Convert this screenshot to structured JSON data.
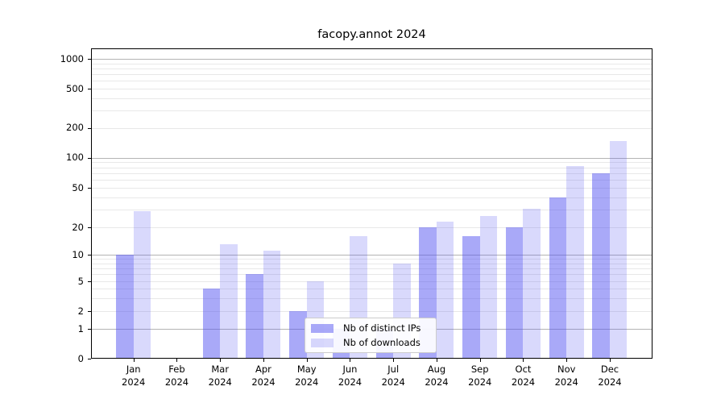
{
  "title": "facopy.annot 2024",
  "colors": {
    "ips": "rgba(80,80,240,0.49)",
    "downloads": "rgba(80,80,240,0.22)",
    "major_grid": "#b4b4b4",
    "minor_grid": "#e8e8e8",
    "axis": "#000000",
    "legend_border": "#cccccc"
  },
  "y_axis": {
    "tick_labels": [
      "0",
      "1",
      "2",
      "5",
      "10",
      "20",
      "50",
      "100",
      "200",
      "500",
      "1000"
    ]
  },
  "legend": {
    "items": [
      {
        "label": "Nb of distinct IPs",
        "swatch": "ips"
      },
      {
        "label": "Nb of downloads",
        "swatch": "downloads"
      }
    ]
  },
  "chart_data": {
    "type": "bar",
    "title": "facopy.annot 2024",
    "categories": [
      "Jan 2024",
      "Feb 2024",
      "Mar 2024",
      "Apr 2024",
      "May 2024",
      "Jun 2024",
      "Jul 2024",
      "Aug 2024",
      "Sep 2024",
      "Oct 2024",
      "Nov 2024",
      "Dec 2024"
    ],
    "series": [
      {
        "name": "Nb of distinct IPs",
        "color_key": "ips",
        "values": [
          10,
          0,
          4,
          6,
          2,
          1,
          1,
          20,
          16,
          20,
          40,
          70
        ]
      },
      {
        "name": "Nb of downloads",
        "color_key": "downloads",
        "values": [
          29,
          0,
          13,
          11,
          5,
          16,
          8,
          23,
          26,
          31,
          82,
          148
        ]
      }
    ],
    "xlabel": "",
    "ylabel": "",
    "yscale": "symlog",
    "yticks": [
      0,
      1,
      2,
      5,
      10,
      20,
      50,
      100,
      200,
      500,
      1000
    ],
    "ylim": [
      0,
      1400
    ],
    "grid": true,
    "legend_position": "lower center"
  }
}
